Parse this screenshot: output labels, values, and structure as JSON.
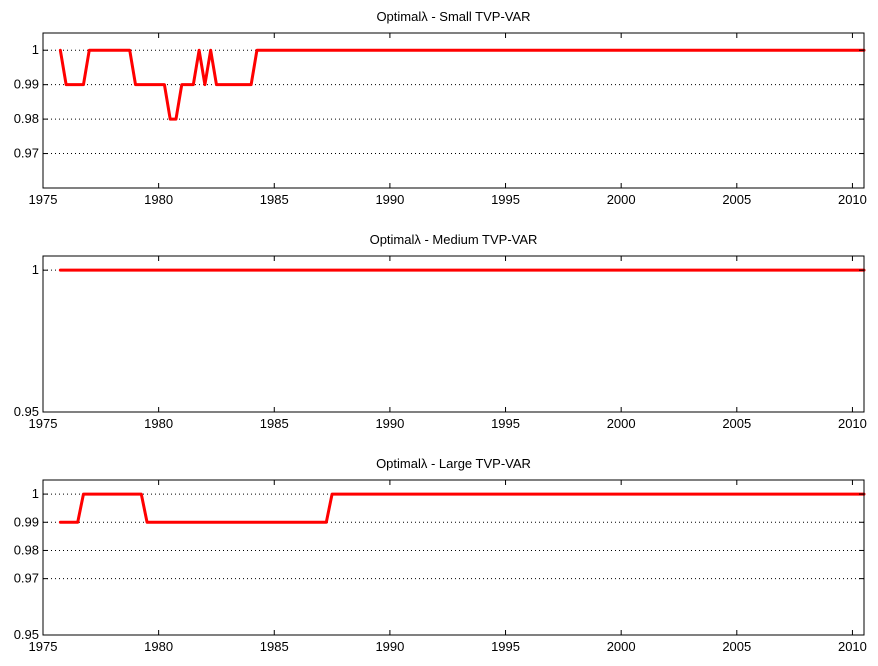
{
  "chart_data": [
    {
      "type": "line",
      "title": "Optimalλ - Small TVP-VAR",
      "xlim": [
        1975,
        2010.5
      ],
      "ylim": [
        0.96,
        1.005
      ],
      "xticks": [
        1975,
        1980,
        1985,
        1990,
        1995,
        2000,
        2005,
        2010
      ],
      "yticks": [
        0.97,
        0.98,
        0.99,
        1
      ],
      "ytick_labels": [
        "0.97",
        "0.98",
        "0.99",
        "1"
      ],
      "grid": "horizontal-dotted",
      "series": [
        {
          "color": "#ff0000",
          "x": [
            1975.75,
            1976.0,
            1976.25,
            1976.5,
            1976.75,
            1977.0,
            1977.25,
            1977.5,
            1977.75,
            1978.0,
            1978.25,
            1978.5,
            1978.75,
            1979.0,
            1979.25,
            1979.5,
            1979.75,
            1980.0,
            1980.25,
            1980.5,
            1980.75,
            1981.0,
            1981.25,
            1981.5,
            1981.75,
            1982.0,
            1982.25,
            1982.5,
            1982.75,
            1983.0,
            1983.25,
            1983.5,
            1983.75,
            1984.0,
            1984.25,
            1985.0,
            1990.0,
            1995.0,
            2000.0,
            2005.0,
            2010.5
          ],
          "y": [
            1,
            0.99,
            0.99,
            0.99,
            0.99,
            1,
            1,
            1,
            1,
            1,
            1,
            1,
            1,
            0.99,
            0.99,
            0.99,
            0.99,
            0.99,
            0.99,
            0.98,
            0.98,
            0.99,
            0.99,
            0.99,
            1,
            0.99,
            1,
            0.99,
            0.99,
            0.99,
            0.99,
            0.99,
            0.99,
            0.99,
            1,
            1,
            1,
            1,
            1,
            1,
            1
          ]
        }
      ]
    },
    {
      "type": "line",
      "title": "Optimalλ - Medium TVP-VAR",
      "xlim": [
        1975,
        2010.5
      ],
      "ylim": [
        0.95,
        1.005
      ],
      "xticks": [
        1975,
        1980,
        1985,
        1990,
        1995,
        2000,
        2005,
        2010
      ],
      "yticks": [
        0.95,
        1
      ],
      "ytick_labels": [
        "0.95",
        "1"
      ],
      "grid": "horizontal-dotted",
      "series": [
        {
          "color": "#ff0000",
          "x": [
            1975.75,
            1985.0,
            1995.0,
            2005.0,
            2010.5
          ],
          "y": [
            1,
            1,
            1,
            1,
            1
          ]
        }
      ]
    },
    {
      "type": "line",
      "title": "Optimalλ - Large TVP-VAR",
      "xlim": [
        1975,
        2010.5
      ],
      "ylim": [
        0.95,
        1.005
      ],
      "xticks": [
        1975,
        1980,
        1985,
        1990,
        1995,
        2000,
        2005,
        2010
      ],
      "yticks": [
        0.95,
        0.97,
        0.98,
        0.99,
        1
      ],
      "ytick_labels": [
        "0.95",
        "0.97",
        "0.98",
        "0.99",
        "1"
      ],
      "grid": "horizontal-dotted",
      "series": [
        {
          "color": "#ff0000",
          "x": [
            1975.75,
            1976.5,
            1976.75,
            1979.25,
            1979.5,
            1985.0,
            1987.25,
            1987.5,
            1990.0,
            1995.0,
            2000.0,
            2005.0,
            2010.5
          ],
          "y": [
            0.99,
            0.99,
            1,
            1,
            0.99,
            0.99,
            0.99,
            1,
            1,
            1,
            1,
            1,
            1
          ]
        }
      ]
    }
  ]
}
